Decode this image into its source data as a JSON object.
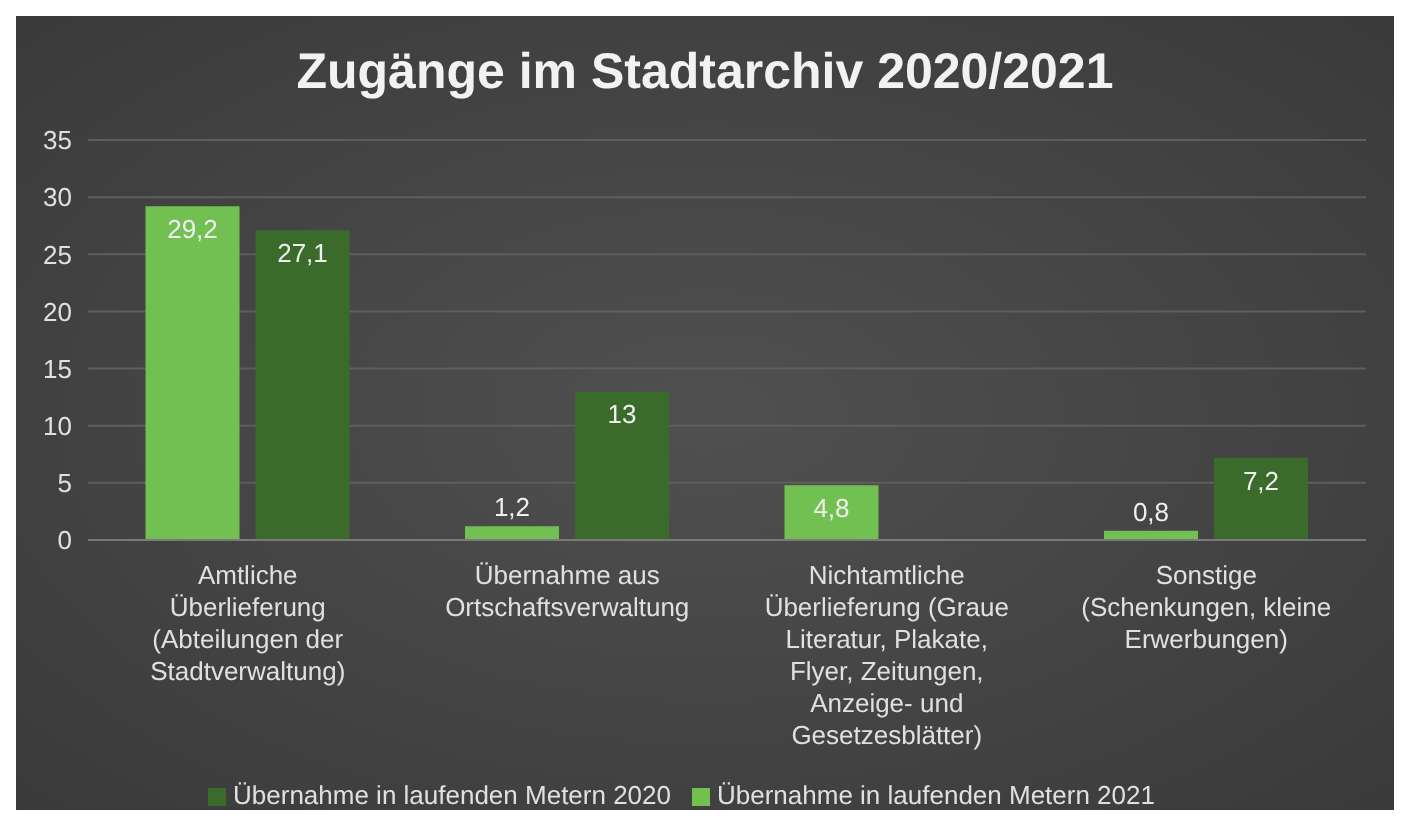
{
  "chart_data": {
    "type": "bar",
    "title": "Zugänge im Stadtarchiv 2020/2021",
    "categories": [
      "Amtliche Überlieferung (Abteilungen der Stadtverwaltung)",
      "Übernahme aus Ortschaftsverwaltung",
      "Nichtamtliche Überlieferung (Graue Literatur, Plakate, Flyer, Zeitungen, Anzeige- und Gesetzesblätter)",
      "Sonstige (Schenkungen, kleine Erwerbungen)"
    ],
    "series": [
      {
        "name": "Übernahme in laufenden Metern 2021",
        "color": "#72c052",
        "values": [
          29.2,
          1.2,
          4.8,
          0.8
        ],
        "value_labels": [
          "29,2",
          "1,2",
          "4,8",
          "0,8"
        ]
      },
      {
        "name": "Übernahme in laufenden Metern 2020",
        "color": "#3a6b2b",
        "values": [
          27.1,
          13,
          null,
          7.2
        ],
        "value_labels": [
          "27,1",
          "13",
          null,
          "7,2"
        ]
      }
    ],
    "ylim": [
      0,
      35
    ],
    "yticks": [
      0,
      5,
      10,
      15,
      20,
      25,
      30,
      35
    ],
    "grid": "y",
    "legend": "bottom"
  }
}
